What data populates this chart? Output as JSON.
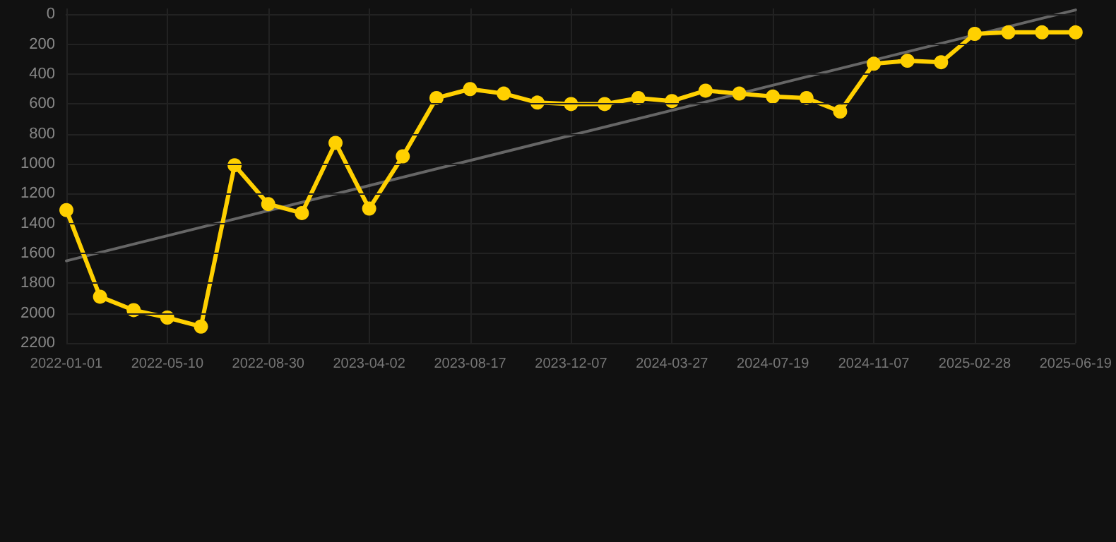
{
  "chart_data": {
    "type": "line",
    "categories": [
      "2022-01-01",
      null,
      null,
      "2022-05-10",
      null,
      null,
      "2022-08-30",
      null,
      null,
      "2023-04-02",
      null,
      null,
      "2023-08-17",
      null,
      null,
      "2023-12-07",
      null,
      null,
      "2024-03-27",
      null,
      null,
      "2024-07-19",
      null,
      null,
      "2024-11-07",
      null,
      null,
      "2025-02-28",
      null,
      null,
      "2025-06-19"
    ],
    "series": [
      {
        "color": "#ffd000",
        "marker": "circle",
        "values": [
          1310,
          1890,
          1980,
          2030,
          2090,
          1010,
          1270,
          1330,
          860,
          1300,
          950,
          560,
          500,
          530,
          590,
          600,
          600,
          560,
          580,
          510,
          530,
          550,
          560,
          650,
          330,
          310,
          320,
          130,
          120,
          120,
          120
        ]
      },
      {
        "color": "#666666",
        "marker": "none",
        "values": [
          1650,
          null,
          null,
          null,
          null,
          null,
          null,
          null,
          null,
          null,
          null,
          null,
          null,
          null,
          null,
          null,
          null,
          null,
          null,
          null,
          null,
          null,
          null,
          null,
          null,
          null,
          null,
          null,
          null,
          null,
          -30
        ]
      }
    ],
    "ylim": [
      2200,
      -40
    ],
    "yticks": [
      0,
      200,
      400,
      600,
      800,
      1000,
      1200,
      1400,
      1600,
      1800,
      2000,
      2200
    ],
    "grid": true
  }
}
